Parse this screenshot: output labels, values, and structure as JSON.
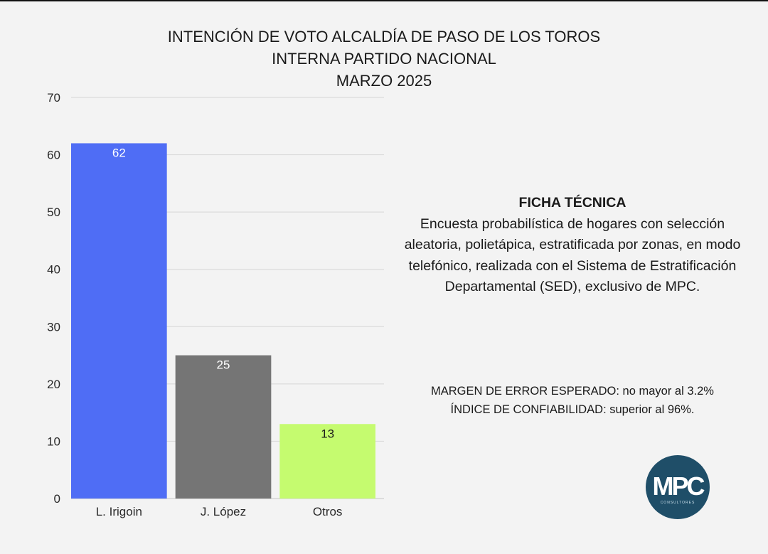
{
  "title": {
    "line1": "INTENCIÓN DE VOTO ALCALDÍA DE PASO DE LOS TOROS",
    "line2": "INTERNA PARTIDO NACIONAL",
    "line3": "MARZO 2025"
  },
  "chart_data": {
    "type": "bar",
    "title": "INTENCIÓN DE VOTO ALCALDÍA DE PASO DE LOS TOROS",
    "categories": [
      "L. Irigoin",
      "J. López",
      "Otros"
    ],
    "values": [
      62,
      25,
      13
    ],
    "value_labels": [
      "62",
      "25",
      "13"
    ],
    "bar_colors": [
      "#4f6df5",
      "#757575",
      "#c5fb6f"
    ],
    "label_colors": [
      "#ffffff",
      "#ffffff",
      "#1a1a1a"
    ],
    "xlabel": "",
    "ylabel": "",
    "ylim": [
      0,
      70
    ],
    "yticks": [
      "0",
      "10",
      "20",
      "30",
      "40",
      "50",
      "60",
      "70"
    ],
    "grid": true
  },
  "ficha": {
    "title": "FICHA TÉCNICA",
    "lines": [
      "Encuesta probabilística de hogares con selección",
      "aleatoria, polietápica, estratificada por zonas, en modo",
      "telefónico, realizada con el Sistema de Estratificación",
      "Departamental (SED), exclusivo de MPC."
    ]
  },
  "margen": {
    "line1": "MARGEN DE ERROR ESPERADO: no mayor al 3.2%",
    "line2": "ÍNDICE DE CONFIABILIDAD: superior al 96%."
  },
  "logo": {
    "text": "MPC",
    "subtext": "CONSULTORES"
  }
}
